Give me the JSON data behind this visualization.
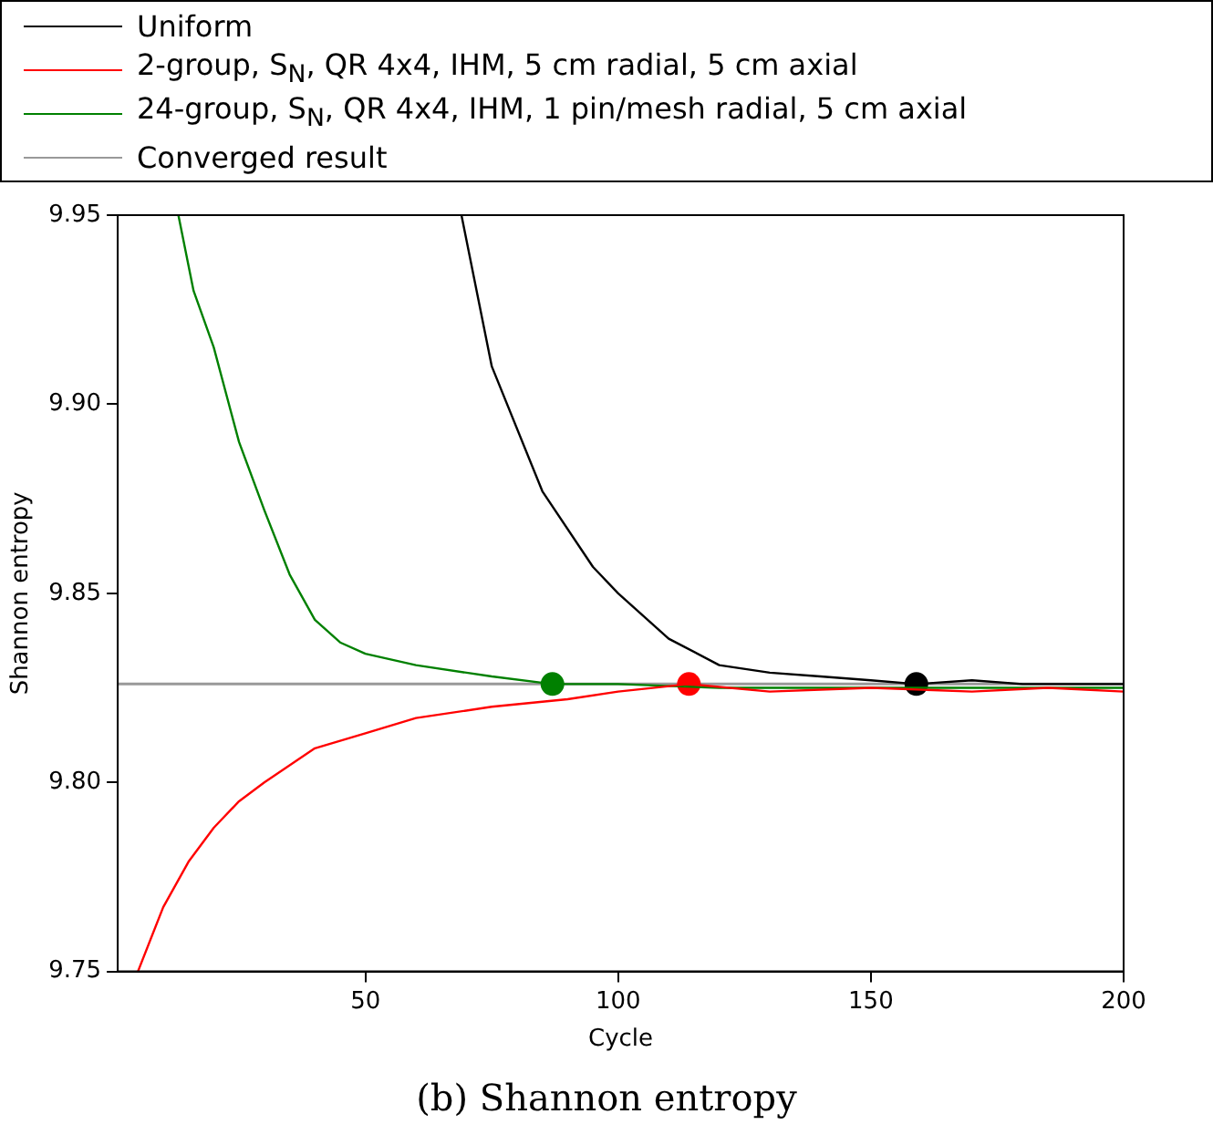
{
  "chart_data": {
    "type": "line",
    "title": "(b) Shannon entropy",
    "xlabel": "Cycle",
    "ylabel": "Shannon entropy",
    "xlim": [
      1,
      200
    ],
    "xticks": [
      50,
      100,
      150,
      200
    ],
    "ylim": [
      9.75,
      9.95
    ],
    "yticks": [
      9.75,
      {
        "value": 9.8,
        "label": "9.80"
      },
      9.85,
      {
        "value": 9.9,
        "label": "9.90"
      },
      9.95
    ],
    "grid": false,
    "legend": "top",
    "marker": "none",
    "line_style": "solid",
    "series": [
      {
        "name": "Uniform",
        "color": "#000000",
        "x": [
          69,
          75,
          85,
          95,
          100,
          110,
          120,
          130,
          140,
          150,
          159,
          170,
          180,
          190,
          200
        ],
        "values": [
          9.95,
          9.91,
          9.877,
          9.857,
          9.85,
          9.838,
          9.831,
          9.829,
          9.828,
          9.827,
          9.826,
          9.827,
          9.826,
          9.826,
          9.826
        ]
      },
      {
        "name": "2-group, S$_{N}$, QR 4x4, IHM, 5 cm radial, 5 cm axial",
        "color": "#ff0000",
        "x": [
          5,
          10,
          15,
          20,
          25,
          30,
          40,
          50,
          60,
          75,
          90,
          100,
          114,
          130,
          150,
          170,
          185,
          200
        ],
        "values": [
          9.75,
          9.767,
          9.779,
          9.788,
          9.795,
          9.8,
          9.809,
          9.813,
          9.817,
          9.82,
          9.822,
          9.824,
          9.826,
          9.824,
          9.825,
          9.824,
          9.825,
          9.824
        ]
      },
      {
        "name": "24-group, S$_{N}$, QR 4x4, IHM, 1 pin/mesh radial, 5 cm axial",
        "color": "#008000",
        "x": [
          13,
          16,
          20,
          25,
          30,
          35,
          40,
          45,
          50,
          60,
          75,
          87,
          100,
          120,
          140,
          160,
          180,
          200
        ],
        "values": [
          9.95,
          9.93,
          9.915,
          9.89,
          9.872,
          9.855,
          9.843,
          9.837,
          9.834,
          9.831,
          9.828,
          9.826,
          9.826,
          9.825,
          9.825,
          9.825,
          9.825,
          9.825
        ]
      },
      {
        "type": "scatter",
        "marker": "circle",
        "color": "#008000",
        "x": [
          87
        ],
        "values": [
          9.826
        ]
      },
      {
        "type": "scatter",
        "marker": "circle",
        "color": "#ff0000",
        "x": [
          114
        ],
        "values": [
          9.826
        ]
      },
      {
        "type": "scatter",
        "marker": "circle",
        "color": "#000000",
        "x": [
          159
        ],
        "values": [
          9.826
        ]
      }
    ],
    "ref_lines": [
      {
        "axis": "y",
        "value": 9.826,
        "label": "Converged result",
        "color": "#999999"
      }
    ]
  }
}
